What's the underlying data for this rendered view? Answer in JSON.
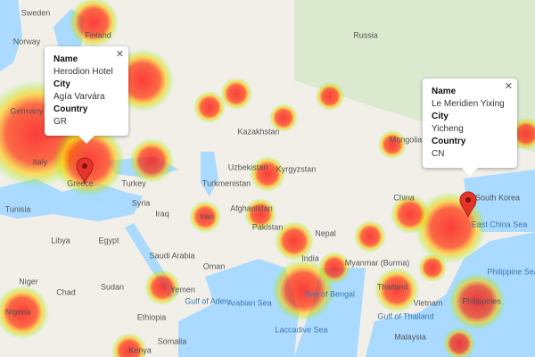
{
  "labels": [
    "Sweden",
    "Finland",
    "Norway",
    "Russia",
    "Germany",
    "Italy",
    "Greece",
    "Turkey",
    "Tunisia",
    "Libya",
    "Egypt",
    "Syria",
    "Iraq",
    "Iran",
    "Saudi Arabia",
    "Oman",
    "Yemen",
    "Sudan",
    "Chad",
    "Niger",
    "Nigeria",
    "Ethiopia",
    "Somalia",
    "Kenya",
    "Gulf of Aden",
    "Arabian Sea",
    "Kazakhstan",
    "Uzbekistan",
    "Kyrgyzstan",
    "Turkmenistan",
    "Afghanistan",
    "Pakistan",
    "India",
    "Nepal",
    "Mongolia",
    "China",
    "South Korea",
    "East China Sea",
    "Myanmar (Burma)",
    "Bay of Bengal",
    "Thailand",
    "Vietnam",
    "Gulf of Thailand",
    "Philippines",
    "Philippine Sea",
    "Laccadive Sea",
    "Malaysia"
  ],
  "popups": [
    {
      "name_label": "Name",
      "name": "Herodion Hotel",
      "city_label": "City",
      "city": "Agía Varvára",
      "country_label": "Country",
      "country": "GR"
    },
    {
      "name_label": "Name",
      "name": "Le Meridien Yixing",
      "city_label": "City",
      "city": "Yicheng",
      "country_label": "Country",
      "country": "CN"
    }
  ]
}
